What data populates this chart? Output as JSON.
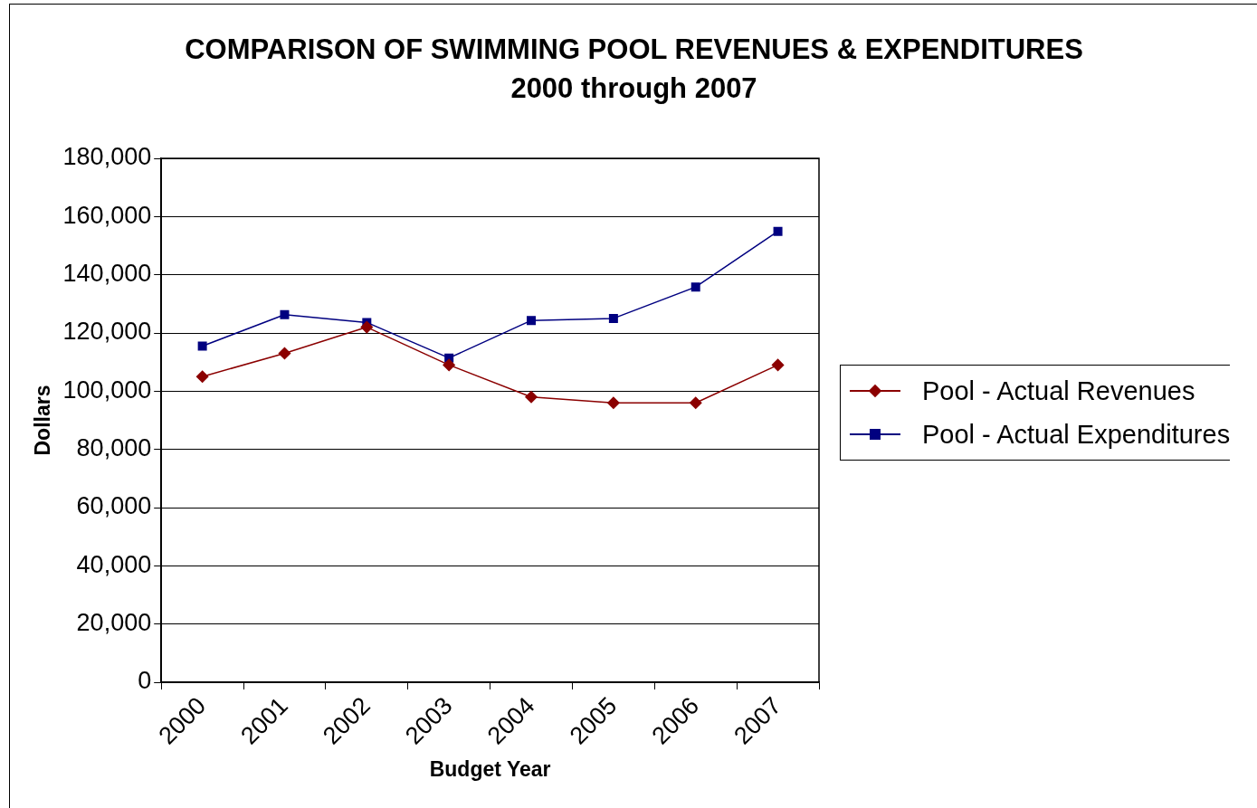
{
  "chart_data": {
    "type": "line",
    "title": "COMPARISON OF SWIMMING POOL REVENUES & EXPENDITURES",
    "subtitle": "2000 through 2007",
    "xlabel": "Budget Year",
    "ylabel": "Dollars",
    "categories": [
      "2000",
      "2001",
      "2002",
      "2003",
      "2004",
      "2005",
      "2006",
      "2007"
    ],
    "series": [
      {
        "name": "Pool - Actual Revenues",
        "color": "#8b0000",
        "marker": "diamond",
        "values": [
          105000,
          113000,
          122000,
          109000,
          98000,
          96000,
          96000,
          109000
        ]
      },
      {
        "name": "Pool - Actual Expenditures",
        "color": "#000080",
        "marker": "square",
        "values": [
          115500,
          126300,
          123600,
          111400,
          124300,
          125000,
          135800,
          154900
        ]
      }
    ],
    "ylim": [
      0,
      180000
    ],
    "yticks": [
      0,
      {
        "value": 20000,
        "label": "20,000"
      },
      {
        "value": 40000,
        "label": "40,000"
      },
      {
        "value": 60000,
        "label": "60,000"
      },
      {
        "value": 80000,
        "label": "80,000"
      },
      {
        "value": 100000,
        "label": "100,000"
      },
      {
        "value": 120000,
        "label": "120,000"
      },
      {
        "value": 140000,
        "label": "140,000"
      },
      {
        "value": 160000,
        "label": "160,000"
      },
      {
        "value": 180000,
        "label": "180,000"
      }
    ],
    "grid": "y",
    "legend": "right"
  }
}
